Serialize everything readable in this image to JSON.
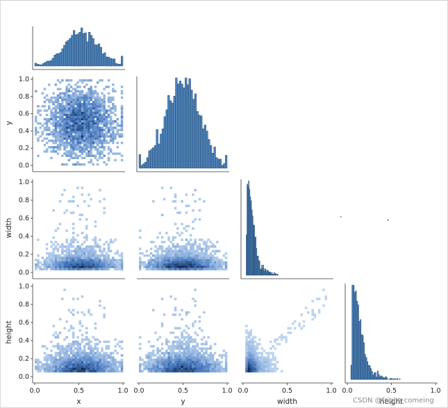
{
  "chart_data": {
    "type": "pairplot",
    "variables": [
      "x",
      "y",
      "width",
      "height"
    ],
    "diag_kind": "hist",
    "offdiag_kind": "hist2d",
    "corner": true,
    "color": "#1f77b4",
    "ticks": [
      "0.0",
      "0.5",
      "1.0"
    ],
    "ytick_labels": [
      "0.0",
      "0.2",
      "0.4",
      "0.6",
      "0.8",
      "1.0"
    ],
    "axis_range": [
      0,
      1
    ],
    "diagonal_hist": {
      "x": {
        "bins_lo": 0.0,
        "bins_hi": 1.0,
        "peak": 0.55,
        "spread": 0.17
      },
      "y": {
        "bins_lo": 0.0,
        "bins_hi": 1.0,
        "peak": 0.5,
        "spread": 0.17
      },
      "width": {
        "bins_lo": 0.0,
        "bins_hi": 0.4,
        "peak": 0.05,
        "second_peak": 0.11
      },
      "height": {
        "bins_lo": 0.0,
        "bins_hi": 0.6,
        "peak": 0.08,
        "second_peak": 0.16
      }
    },
    "grid": false,
    "legend": "none"
  },
  "watermark": "CSDN @fright_comeing"
}
